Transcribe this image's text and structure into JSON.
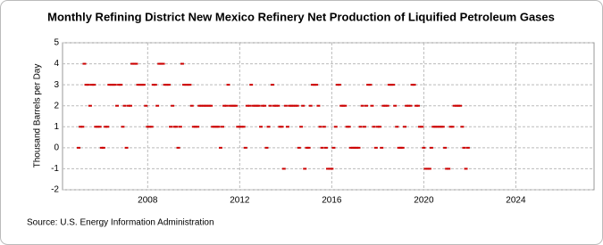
{
  "chart_data": {
    "type": "scatter",
    "title": "Monthly Refining District New Mexico Refinery Net Production of Liquified Petroleum Gases",
    "y_label": "Thousand Barrels per Day",
    "source": "Source: U.S. Energy Information Administration",
    "color": "#cc0000",
    "grid": true,
    "xlim": [
      2004.3,
      2027.4
    ],
    "xticks": [
      2008,
      2012,
      2016,
      2020,
      2024
    ],
    "ylim": [
      -2,
      5
    ],
    "yticks": [
      -2,
      -1,
      0,
      1,
      2,
      3,
      4,
      5
    ],
    "x": [
      2005,
      2005.08,
      2005.17,
      2005.25,
      2005.33,
      2005.42,
      2005.5,
      2005.58,
      2005.67,
      2005.75,
      2005.83,
      2005.92,
      2006,
      2006.08,
      2006.17,
      2006.25,
      2006.33,
      2006.42,
      2006.5,
      2006.58,
      2006.67,
      2006.75,
      2006.83,
      2006.92,
      2007,
      2007.08,
      2007.17,
      2007.25,
      2007.33,
      2007.42,
      2007.5,
      2007.58,
      2007.67,
      2007.75,
      2007.83,
      2007.92,
      2008,
      2008.08,
      2008.17,
      2008.25,
      2008.33,
      2008.42,
      2008.5,
      2008.58,
      2008.67,
      2008.75,
      2008.83,
      2008.92,
      2009,
      2009.08,
      2009.17,
      2009.25,
      2009.33,
      2009.42,
      2009.5,
      2009.58,
      2009.67,
      2009.75,
      2009.83,
      2009.92,
      2010,
      2010.08,
      2010.17,
      2010.25,
      2010.33,
      2010.42,
      2010.5,
      2010.58,
      2010.67,
      2010.75,
      2010.83,
      2010.92,
      2011,
      2011.08,
      2011.17,
      2011.25,
      2011.33,
      2011.42,
      2011.5,
      2011.58,
      2011.67,
      2011.75,
      2011.83,
      2011.92,
      2012,
      2012.08,
      2012.17,
      2012.25,
      2012.33,
      2012.42,
      2012.5,
      2012.58,
      2012.67,
      2012.75,
      2012.83,
      2012.92,
      2013,
      2013.08,
      2013.17,
      2013.25,
      2013.33,
      2013.42,
      2013.5,
      2013.58,
      2013.67,
      2013.75,
      2013.83,
      2013.92,
      2014,
      2014.08,
      2014.17,
      2014.25,
      2014.33,
      2014.42,
      2014.5,
      2014.58,
      2014.67,
      2014.75,
      2014.83,
      2014.92,
      2015,
      2015.08,
      2015.17,
      2015.25,
      2015.33,
      2015.42,
      2015.5,
      2015.58,
      2015.67,
      2015.75,
      2015.83,
      2015.92,
      2016,
      2016.08,
      2016.17,
      2016.25,
      2016.33,
      2016.42,
      2016.5,
      2016.58,
      2016.67,
      2016.75,
      2016.83,
      2016.92,
      2017,
      2017.08,
      2017.17,
      2017.25,
      2017.33,
      2017.42,
      2017.5,
      2017.58,
      2017.67,
      2017.75,
      2017.83,
      2017.92,
      2018,
      2018.08,
      2018.17,
      2018.25,
      2018.33,
      2018.42,
      2018.5,
      2018.58,
      2018.67,
      2018.75,
      2018.83,
      2018.92,
      2019,
      2019.08,
      2019.17,
      2019.25,
      2019.33,
      2019.42,
      2019.5,
      2019.58,
      2019.67,
      2019.75,
      2019.83,
      2019.92,
      2020,
      2020.08,
      2020.17,
      2020.25,
      2020.33,
      2020.42,
      2020.5,
      2020.58,
      2020.67,
      2020.75,
      2020.83,
      2020.92,
      2021,
      2021.08,
      2021.17,
      2021.25,
      2021.33,
      2021.42,
      2021.5,
      2021.58,
      2021.67,
      2021.75,
      2021.83,
      2021.92
    ],
    "values": [
      0,
      1,
      1,
      4,
      3,
      3,
      2,
      3,
      3,
      1,
      1,
      1,
      0,
      0,
      1,
      1,
      3,
      3,
      3,
      3,
      2,
      3,
      3,
      1,
      2,
      0,
      2,
      2,
      4,
      4,
      4,
      3,
      3,
      3,
      3,
      2,
      1,
      1,
      1,
      3,
      3,
      2,
      4,
      4,
      4,
      3,
      3,
      3,
      1,
      2,
      1,
      1,
      0,
      1,
      4,
      3,
      3,
      3,
      3,
      2,
      1,
      1,
      1,
      2,
      2,
      2,
      2,
      2,
      2,
      2,
      1,
      1,
      1,
      1,
      0,
      1,
      2,
      2,
      3,
      2,
      2,
      2,
      2,
      1,
      1,
      1,
      1,
      0,
      2,
      2,
      3,
      2,
      2,
      2,
      2,
      1,
      2,
      2,
      0,
      1,
      2,
      3,
      2,
      2,
      2,
      1,
      1,
      -1,
      2,
      1,
      2,
      2,
      2,
      2,
      2,
      0,
      1,
      2,
      -1,
      0,
      0,
      2,
      3,
      3,
      3,
      2,
      1,
      0,
      1,
      0,
      -1,
      -1,
      -1,
      0,
      1,
      3,
      3,
      2,
      2,
      2,
      1,
      1,
      0,
      0,
      0,
      0,
      0,
      1,
      2,
      1,
      2,
      3,
      3,
      2,
      1,
      0,
      1,
      1,
      0,
      2,
      2,
      2,
      3,
      3,
      3,
      2,
      1,
      0,
      0,
      0,
      1,
      2,
      2,
      2,
      3,
      3,
      2,
      2,
      1,
      1,
      0,
      -1,
      -1,
      -1,
      0,
      1,
      1,
      1,
      1,
      1,
      1,
      0,
      -1,
      -1,
      1,
      1,
      2,
      2,
      2,
      2,
      1,
      0,
      -1,
      0
    ]
  }
}
